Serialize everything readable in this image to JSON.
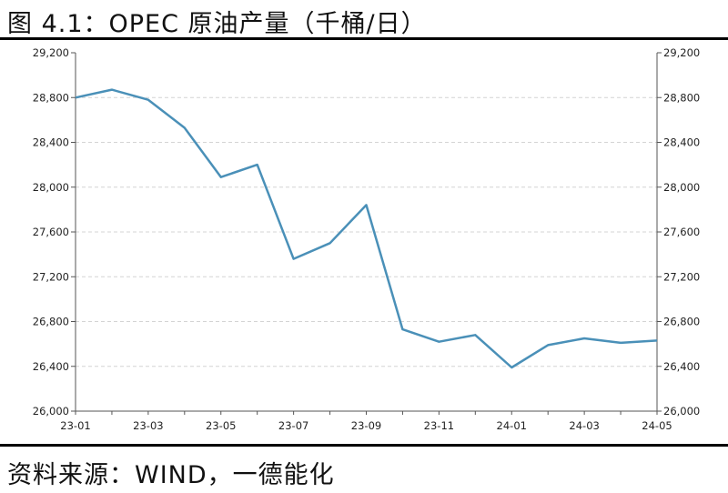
{
  "figure": {
    "title": "图 4.1：OPEC 原油产量（千桶/日）",
    "source": "资料来源：WIND，一德能化"
  },
  "chart_data": {
    "type": "line",
    "title": "图 4.1：OPEC 原油产量（千桶/日）",
    "xlabel": "",
    "ylabel": "",
    "x": [
      "23-01",
      "23-02",
      "23-03",
      "23-04",
      "23-05",
      "23-06",
      "23-07",
      "23-08",
      "23-09",
      "23-10",
      "23-11",
      "23-12",
      "24-01",
      "24-02",
      "24-03",
      "24-04",
      "24-05"
    ],
    "x_tick_labels": [
      "23-01",
      "23-03",
      "23-05",
      "23-07",
      "23-09",
      "23-11",
      "24-01",
      "24-03",
      "24-05"
    ],
    "y_tick_labels": [
      "26,000",
      "26,400",
      "26,800",
      "27,200",
      "27,600",
      "28,000",
      "28,400",
      "28,800",
      "29,200"
    ],
    "ylim": [
      26000,
      29200
    ],
    "y_right_axis": true,
    "grid": "horizontal-dashed",
    "series": [
      {
        "color": "#4a90b8",
        "values": [
          28800,
          28870,
          28780,
          28530,
          28090,
          28200,
          27360,
          27500,
          27840,
          26730,
          26620,
          26680,
          26390,
          26590,
          26650,
          26610,
          26630
        ]
      }
    ]
  }
}
